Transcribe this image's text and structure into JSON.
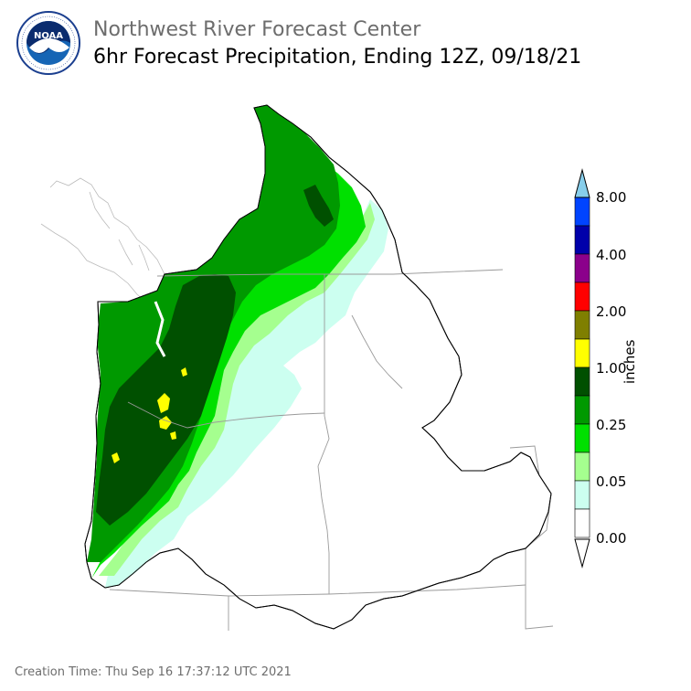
{
  "header": {
    "title": "Northwest River Forecast Center",
    "subtitle": "6hr Forecast Precipitation, Ending 12Z, 09/18/21"
  },
  "logo": {
    "text": "NOAA",
    "ring_text": "NATIONAL OCEANIC AND ATMOSPHERIC ADMINISTRATION · U.S. DEPARTMENT OF COMMERCE"
  },
  "legend": {
    "unit": "inches",
    "ticks": [
      "8.00",
      "4.00",
      "2.00",
      "1.00",
      "0.25",
      "0.05",
      "0.00"
    ],
    "colors": [
      "#0044ff",
      "#0000aa",
      "#8b008b",
      "#ff0000",
      "#7f7f00",
      "#ffff00",
      "#005000",
      "#009900",
      "#00e000",
      "#a5ff8f",
      "#ccfff0",
      "#ffffff"
    ],
    "top_arrow_color": "#87ceeb",
    "bottom_arrow_color": "#ffffff"
  },
  "footer": {
    "creation_time": "Creation Time: Thu Sep 16 17:37:12 UTC 2021"
  }
}
